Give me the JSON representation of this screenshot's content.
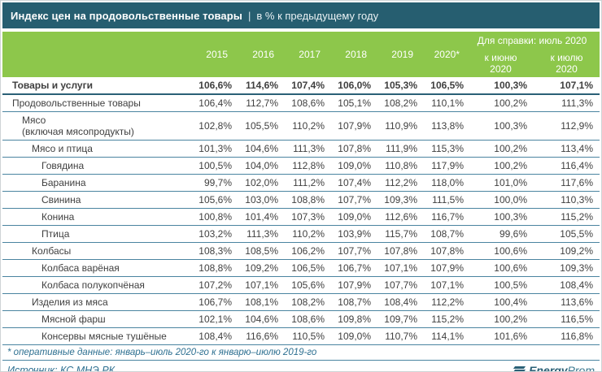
{
  "report": {
    "title": {
      "main": "Индекс цен на продовольственные товары",
      "separator": "|",
      "subtitle": "в % к предыдущему году"
    }
  },
  "chart_data": {
    "type": "table",
    "title": "Индекс цен на продовольственные товары, в % к предыдущему году",
    "ref_group_label": "Для справки: июль 2020",
    "year_columns": [
      "2015",
      "2016",
      "2017",
      "2018",
      "2019",
      "2020*"
    ],
    "ref_columns": [
      {
        "line1": "к июню",
        "line2": "2020"
      },
      {
        "line1": "к июлю",
        "line2": "2020"
      }
    ],
    "rows": [
      {
        "label": "Товары и услуги",
        "indent": 0,
        "bold": true,
        "values": [
          "106,6%",
          "114,6%",
          "107,4%",
          "106,0%",
          "105,3%",
          "106,5%",
          "100,3%",
          "107,1%"
        ]
      },
      {
        "label": "Продовольственные товары",
        "indent": 0,
        "bold": false,
        "values": [
          "106,4%",
          "112,7%",
          "108,6%",
          "105,1%",
          "108,2%",
          "110,1%",
          "100,2%",
          "111,3%"
        ]
      },
      {
        "label": "Мясо",
        "label2": "(включая мясопродукты)",
        "indent": 1,
        "bold": false,
        "values": [
          "102,8%",
          "105,5%",
          "110,2%",
          "107,9%",
          "110,9%",
          "113,8%",
          "100,3%",
          "112,9%"
        ]
      },
      {
        "label": "Мясо и птица",
        "indent": 2,
        "bold": false,
        "values": [
          "101,3%",
          "104,6%",
          "111,3%",
          "107,8%",
          "111,9%",
          "115,3%",
          "100,2%",
          "113,4%"
        ]
      },
      {
        "label": "Говядина",
        "indent": 3,
        "bold": false,
        "values": [
          "100,5%",
          "104,0%",
          "112,8%",
          "109,0%",
          "110,8%",
          "117,9%",
          "100,2%",
          "116,4%"
        ]
      },
      {
        "label": "Баранина",
        "indent": 3,
        "bold": false,
        "values": [
          "99,7%",
          "102,0%",
          "111,2%",
          "107,4%",
          "112,2%",
          "118,0%",
          "101,0%",
          "117,6%"
        ]
      },
      {
        "label": "Свинина",
        "indent": 3,
        "bold": false,
        "values": [
          "105,6%",
          "103,0%",
          "108,8%",
          "107,7%",
          "109,3%",
          "111,5%",
          "100,0%",
          "110,3%"
        ]
      },
      {
        "label": "Конина",
        "indent": 3,
        "bold": false,
        "values": [
          "100,8%",
          "101,4%",
          "107,3%",
          "109,0%",
          "112,6%",
          "116,7%",
          "100,3%",
          "115,2%"
        ]
      },
      {
        "label": "Птица",
        "indent": 3,
        "bold": false,
        "values": [
          "103,2%",
          "111,3%",
          "110,2%",
          "103,9%",
          "115,7%",
          "108,7%",
          "99,6%",
          "105,5%"
        ]
      },
      {
        "label": "Колбасы",
        "indent": 2,
        "bold": false,
        "values": [
          "108,3%",
          "108,5%",
          "106,2%",
          "107,7%",
          "107,8%",
          "107,8%",
          "100,6%",
          "109,2%"
        ]
      },
      {
        "label": "Колбаса варёная",
        "indent": 3,
        "bold": false,
        "values": [
          "108,8%",
          "109,2%",
          "106,5%",
          "106,7%",
          "107,1%",
          "107,9%",
          "100,6%",
          "109,3%"
        ]
      },
      {
        "label": "Колбаса полукопчёная",
        "indent": 3,
        "bold": false,
        "values": [
          "107,2%",
          "107,1%",
          "105,6%",
          "107,9%",
          "107,7%",
          "107,1%",
          "100,5%",
          "108,4%"
        ]
      },
      {
        "label": "Изделия из мяса",
        "indent": 2,
        "bold": false,
        "values": [
          "106,7%",
          "108,1%",
          "108,2%",
          "108,7%",
          "108,4%",
          "112,2%",
          "100,4%",
          "113,6%"
        ]
      },
      {
        "label": "Мясной фарш",
        "indent": 3,
        "bold": false,
        "values": [
          "102,1%",
          "104,6%",
          "108,6%",
          "109,8%",
          "109,7%",
          "115,2%",
          "100,2%",
          "116,5%"
        ]
      },
      {
        "label": "Консервы мясные тушёные",
        "indent": 3,
        "bold": false,
        "values": [
          "108,4%",
          "116,6%",
          "110,5%",
          "109,0%",
          "110,7%",
          "114,1%",
          "101,6%",
          "116,8%"
        ]
      }
    ]
  },
  "footer": {
    "footnote": "* оперативные данные: январь–июль 2020-го к январю–июлю 2019-го",
    "source": "Источник: КС МНЭ РК",
    "logo": {
      "bold_part": "Energy",
      "regular_part": "Prom"
    }
  },
  "colors": {
    "title_bar_bg": "#265e70",
    "header_bg": "#8dc74b",
    "row_divider": "#4a84a0",
    "accent_dark": "#2a6076",
    "body_text": "#3f3f3f",
    "footnote_text": "#2e7091"
  }
}
